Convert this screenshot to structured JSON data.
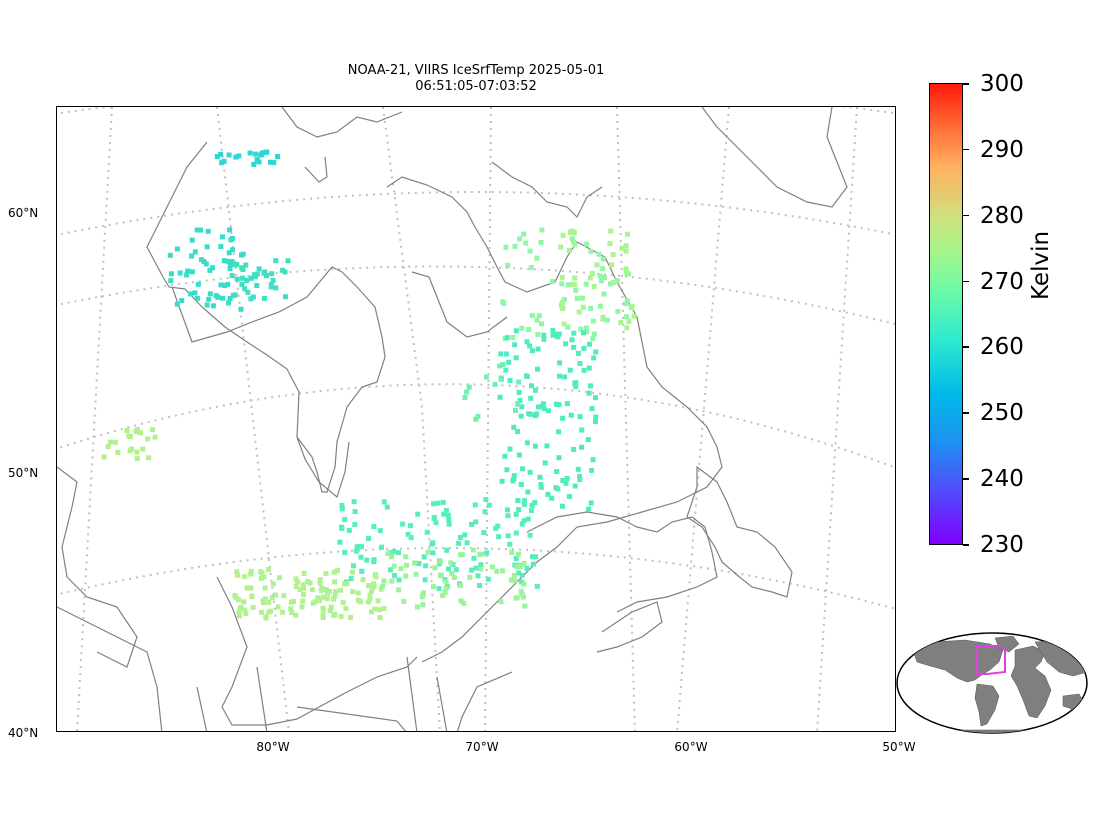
{
  "title": {
    "line1": "NOAA-21, VIIRS IceSrfTemp 2025-05-01",
    "line2": "06:51:05-07:03:52"
  },
  "map": {
    "lat_labels": [
      "60°N",
      "50°N",
      "40°N"
    ],
    "lon_labels": [
      "80°W",
      "70°W",
      "60°W",
      "50°W"
    ],
    "grid_color": "#c0c0c0",
    "coast_color": "#808080"
  },
  "colorbar": {
    "title": "Kelvin",
    "ticks": [
      "300",
      "290",
      "280",
      "270",
      "260",
      "250",
      "240",
      "230"
    ],
    "range": [
      230,
      300
    ],
    "colormap": "rainbow"
  },
  "inset": {
    "land_color": "#7f7f7f",
    "box_color": "#e040e0"
  }
}
